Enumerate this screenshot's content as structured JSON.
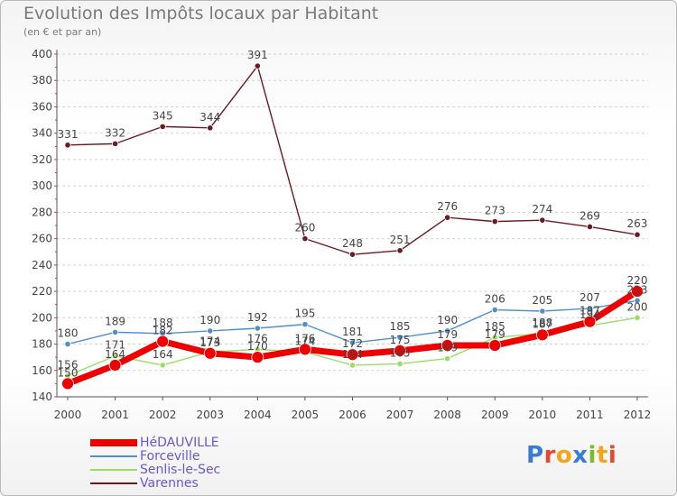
{
  "title": "Evolution des Impôts locaux par Habitant",
  "subtitle": "(en € et par an)",
  "logo": {
    "text": "Proxiti",
    "colors": [
      "#3a7bd5",
      "#e8472b",
      "#f2a41c",
      "#3a7bd5",
      "#7cbb2a",
      "#f2a41c",
      "#e8472b"
    ]
  },
  "chart_data": {
    "type": "line",
    "x": [
      "2000",
      "2001",
      "2002",
      "2003",
      "2004",
      "2005",
      "2006",
      "2007",
      "2008",
      "2009",
      "2010",
      "2011",
      "2012"
    ],
    "y_ticks": [
      "140",
      "160",
      "180",
      "200",
      "220",
      "240",
      "260",
      "280",
      "300",
      "320",
      "340",
      "360",
      "380",
      "400"
    ],
    "ylim": [
      140,
      400
    ],
    "grid": "horizontal dashed",
    "legend_position": "bottom-left",
    "series": [
      {
        "name": "Varennes",
        "color": "#6b1a21",
        "values": [
          331,
          332,
          345,
          344,
          391,
          260,
          248,
          251,
          276,
          273,
          274,
          269,
          263
        ],
        "labels": [
          "331",
          "332",
          "345",
          "344",
          "391",
          "260",
          "248",
          "251",
          "276",
          "273",
          "274",
          "269",
          "263"
        ]
      },
      {
        "name": "Forceville",
        "color": "#4f8fcc",
        "values": [
          180,
          189,
          188,
          190,
          192,
          195,
          181,
          185,
          190,
          206,
          205,
          207,
          213
        ],
        "labels": [
          "180",
          "189",
          "188",
          "190",
          "192",
          "195",
          "181",
          "185",
          "190",
          "206",
          "205",
          "207",
          "213"
        ]
      },
      {
        "name": "Senlis-le-Sec",
        "color": "#99dd66",
        "values": [
          156,
          171,
          164,
          174,
          176,
          174,
          164,
          165,
          169,
          185,
          188,
          194,
          200
        ],
        "labels": [
          "156",
          "171",
          "164",
          "174",
          "176",
          "174",
          "164",
          "165",
          "169",
          "185",
          "188",
          "194",
          "200"
        ]
      },
      {
        "name": "HéDAUVILLE",
        "color": "#ee0000",
        "values": [
          150,
          164,
          182,
          173,
          170,
          176,
          172,
          175,
          179,
          179,
          187,
          197,
          220
        ],
        "labels": [
          "150",
          "164",
          "182",
          "173",
          "170",
          "176",
          "172",
          "175",
          "179",
          "179",
          "187",
          "197",
          "220"
        ]
      }
    ]
  },
  "legend": [
    {
      "label": "HéDAUVILLE",
      "color": "#ee0000"
    },
    {
      "label": "Forceville",
      "color": "#4f8fcc"
    },
    {
      "label": "Senlis-le-Sec",
      "color": "#99dd66"
    },
    {
      "label": "Varennes",
      "color": "#6b1a21"
    }
  ]
}
